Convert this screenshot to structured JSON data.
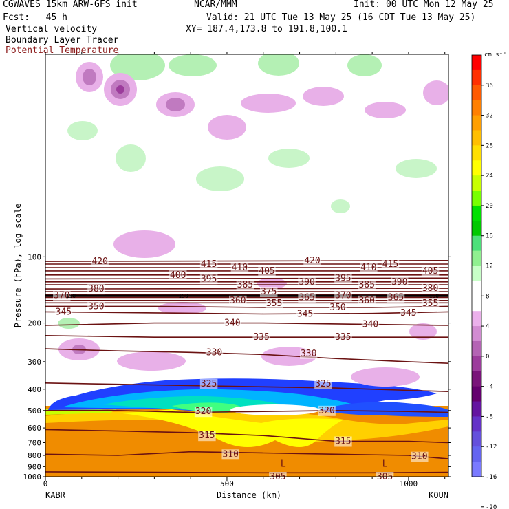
{
  "header": {
    "model": "CGWAVES 15km ARW-GFS init",
    "org": "NCAR/MMM",
    "init": "Init: 00 UTC Mon 12 May 25",
    "fcst": "Fcst:   45 h",
    "valid": "Valid: 21 UTC Tue 13 May 25 (16 CDT Tue 13 May 25)",
    "field1": "Vertical velocity",
    "xy": "XY= 187.4,173.8 to 191.8,100.1",
    "field2": "Boundary Layer Tracer",
    "field3": "Potential Temperature"
  },
  "chart_data": {
    "type": "contour",
    "xlabel": "Distance (km)",
    "ylabel": "Pressure (hPa), log scale",
    "x_ticks": [
      0,
      500,
      1000
    ],
    "x_end_labels": [
      "KABR",
      "KOUN"
    ],
    "y_ticks": [
      100,
      200,
      300,
      400,
      500,
      600,
      700,
      800,
      900,
      1000
    ],
    "xlim": [
      0,
      1110
    ],
    "ylim": [
      1000,
      12
    ],
    "colorbar": {
      "unit": "cm s⁻¹",
      "labels": [
        36,
        32,
        28,
        24,
        20,
        16,
        12,
        8,
        4,
        0,
        -4,
        -8,
        -12,
        -16,
        -20
      ],
      "colors": [
        "#ff0000",
        "#ff3000",
        "#ff5a00",
        "#ff8000",
        "#ff9f00",
        "#ffbf00",
        "#ffdf00",
        "#ffff00",
        "#c8ff00",
        "#78ff00",
        "#00e000",
        "#00c800",
        "#4ce07a",
        "#90f090",
        "#c8ffc8",
        "#ffffff",
        "#ffffff",
        "#ebb0eb",
        "#d28cd2",
        "#b464b4",
        "#9c3c9c",
        "#7a147a",
        "#64006e",
        "#6414a0",
        "#6432c8",
        "#6450dc",
        "#6464f0",
        "#7a7aff"
      ]
    },
    "theta_contours": [
      {
        "value": 305,
        "labels": [
          {
            "x": 640,
            "p": 1000
          },
          {
            "x": 935,
            "p": 1000
          }
        ],
        "pts": [
          [
            0,
            950
          ],
          [
            300,
            955
          ],
          [
            600,
            960
          ],
          [
            900,
            960
          ],
          [
            1110,
            955
          ]
        ]
      },
      {
        "value": 310,
        "labels": [
          {
            "x": 510,
            "p": 790
          },
          {
            "x": 1030,
            "p": 810
          }
        ],
        "pts": [
          [
            0,
            790
          ],
          [
            200,
            800
          ],
          [
            400,
            770
          ],
          [
            600,
            780
          ],
          [
            800,
            790
          ],
          [
            1000,
            800
          ],
          [
            1110,
            830
          ]
        ]
      },
      {
        "value": 315,
        "labels": [
          {
            "x": 445,
            "p": 650
          },
          {
            "x": 820,
            "p": 690
          }
        ],
        "pts": [
          [
            0,
            610
          ],
          [
            200,
            620
          ],
          [
            400,
            630
          ],
          [
            600,
            650
          ],
          [
            800,
            690
          ],
          [
            1000,
            690
          ],
          [
            1110,
            700
          ]
        ]
      },
      {
        "value": 320,
        "labels": [
          {
            "x": 435,
            "p": 505
          },
          {
            "x": 775,
            "p": 500
          }
        ],
        "pts": [
          [
            0,
            500
          ],
          [
            200,
            500
          ],
          [
            400,
            510
          ],
          [
            600,
            505
          ],
          [
            800,
            500
          ],
          [
            1000,
            505
          ],
          [
            1110,
            510
          ]
        ]
      },
      {
        "value": 325,
        "labels": [
          {
            "x": 450,
            "p": 378
          },
          {
            "x": 765,
            "p": 378
          }
        ],
        "pts": [
          [
            0,
            375
          ],
          [
            200,
            380
          ],
          [
            400,
            385
          ],
          [
            600,
            390
          ],
          [
            800,
            395
          ],
          [
            1000,
            405
          ],
          [
            1110,
            410
          ]
        ]
      },
      {
        "value": 330,
        "labels": [
          {
            "x": 465,
            "p": 272
          },
          {
            "x": 725,
            "p": 275
          }
        ],
        "pts": [
          [
            0,
            262
          ],
          [
            200,
            268
          ],
          [
            400,
            272
          ],
          [
            600,
            278
          ],
          [
            800,
            290
          ],
          [
            1000,
            300
          ],
          [
            1110,
            305
          ]
        ]
      },
      {
        "value": 335,
        "labels": [
          {
            "x": 595,
            "p": 232
          },
          {
            "x": 820,
            "p": 232
          }
        ],
        "pts": [
          [
            0,
            228
          ],
          [
            300,
            232
          ],
          [
            600,
            232
          ],
          [
            900,
            232
          ],
          [
            1110,
            232
          ]
        ]
      },
      {
        "value": 340,
        "labels": [
          {
            "x": 515,
            "p": 200
          },
          {
            "x": 895,
            "p": 203
          }
        ],
        "pts": [
          [
            0,
            205
          ],
          [
            300,
            200
          ],
          [
            600,
            200
          ],
          [
            900,
            203
          ],
          [
            1110,
            205
          ]
        ]
      },
      {
        "value": 345,
        "labels": [
          {
            "x": 50,
            "p": 178
          },
          {
            "x": 715,
            "p": 182
          },
          {
            "x": 1000,
            "p": 180
          }
        ],
        "pts": [
          [
            0,
            178
          ],
          [
            300,
            180
          ],
          [
            600,
            182
          ],
          [
            900,
            181
          ],
          [
            1110,
            178
          ]
        ]
      },
      {
        "value": 350,
        "labels": [
          {
            "x": 140,
            "p": 168
          },
          {
            "x": 805,
            "p": 170
          }
        ],
        "pts": [
          [
            0,
            168
          ],
          [
            300,
            168
          ],
          [
            600,
            170
          ],
          [
            900,
            170
          ],
          [
            1110,
            168
          ]
        ]
      },
      {
        "value": 355,
        "labels": [
          {
            "x": 630,
            "p": 163
          },
          {
            "x": 1060,
            "p": 163
          }
        ],
        "pts": [
          [
            0,
            162
          ],
          [
            1110,
            162
          ]
        ]
      },
      {
        "value": 360,
        "labels": [
          {
            "x": 530,
            "p": 158
          },
          {
            "x": 885,
            "p": 158
          }
        ],
        "pts": [
          [
            0,
            158
          ],
          [
            1110,
            158
          ]
        ]
      },
      {
        "value": 365,
        "labels": [
          {
            "x": 720,
            "p": 153
          },
          {
            "x": 965,
            "p": 153
          }
        ],
        "pts": [
          [
            0,
            153
          ],
          [
            1110,
            153
          ]
        ]
      },
      {
        "value": 370,
        "labels": [
          {
            "x": 45,
            "p": 150
          },
          {
            "x": 820,
            "p": 150
          }
        ],
        "pts": [
          [
            0,
            149
          ],
          [
            1110,
            149
          ]
        ]
      },
      {
        "value": 375,
        "labels": [
          {
            "x": 615,
            "p": 144
          }
        ],
        "pts": [
          [
            0,
            144
          ],
          [
            1110,
            144
          ]
        ]
      },
      {
        "value": 380,
        "labels": [
          {
            "x": 140,
            "p": 140
          },
          {
            "x": 1060,
            "p": 139
          }
        ],
        "pts": [
          [
            0,
            140
          ],
          [
            1110,
            139
          ]
        ]
      },
      {
        "value": 385,
        "labels": [
          {
            "x": 550,
            "p": 134
          },
          {
            "x": 885,
            "p": 134
          }
        ],
        "pts": [
          [
            0,
            134
          ],
          [
            1110,
            134
          ]
        ]
      },
      {
        "value": 390,
        "labels": [
          {
            "x": 720,
            "p": 130
          },
          {
            "x": 975,
            "p": 130
          }
        ],
        "pts": [
          [
            0,
            130
          ],
          [
            1110,
            130
          ]
        ]
      },
      {
        "value": 395,
        "labels": [
          {
            "x": 450,
            "p": 126
          },
          {
            "x": 820,
            "p": 125
          }
        ],
        "pts": [
          [
            0,
            126
          ],
          [
            1110,
            125
          ]
        ]
      },
      {
        "value": 400,
        "labels": [
          {
            "x": 365,
            "p": 121
          }
        ],
        "pts": [
          [
            0,
            121
          ],
          [
            1110,
            121
          ]
        ]
      },
      {
        "value": 405,
        "labels": [
          {
            "x": 610,
            "p": 116
          },
          {
            "x": 1060,
            "p": 116
          }
        ],
        "pts": [
          [
            0,
            116
          ],
          [
            1110,
            116
          ]
        ]
      },
      {
        "value": 410,
        "labels": [
          {
            "x": 535,
            "p": 112
          },
          {
            "x": 890,
            "p": 112
          }
        ],
        "pts": [
          [
            0,
            112
          ],
          [
            1110,
            112
          ]
        ]
      },
      {
        "value": 415,
        "labels": [
          {
            "x": 450,
            "p": 108
          },
          {
            "x": 950,
            "p": 108
          }
        ],
        "pts": [
          [
            0,
            108
          ],
          [
            1110,
            108
          ]
        ]
      },
      {
        "value": 420,
        "labels": [
          {
            "x": 150,
            "p": 105
          },
          {
            "x": 735,
            "p": 104
          }
        ],
        "pts": [
          [
            0,
            105
          ],
          [
            1110,
            104
          ]
        ]
      }
    ],
    "tracer_label": "150",
    "markers": [
      {
        "text": "L",
        "x": 655,
        "p": 900
      },
      {
        "text": "L",
        "x": 935,
        "p": 900
      }
    ]
  }
}
